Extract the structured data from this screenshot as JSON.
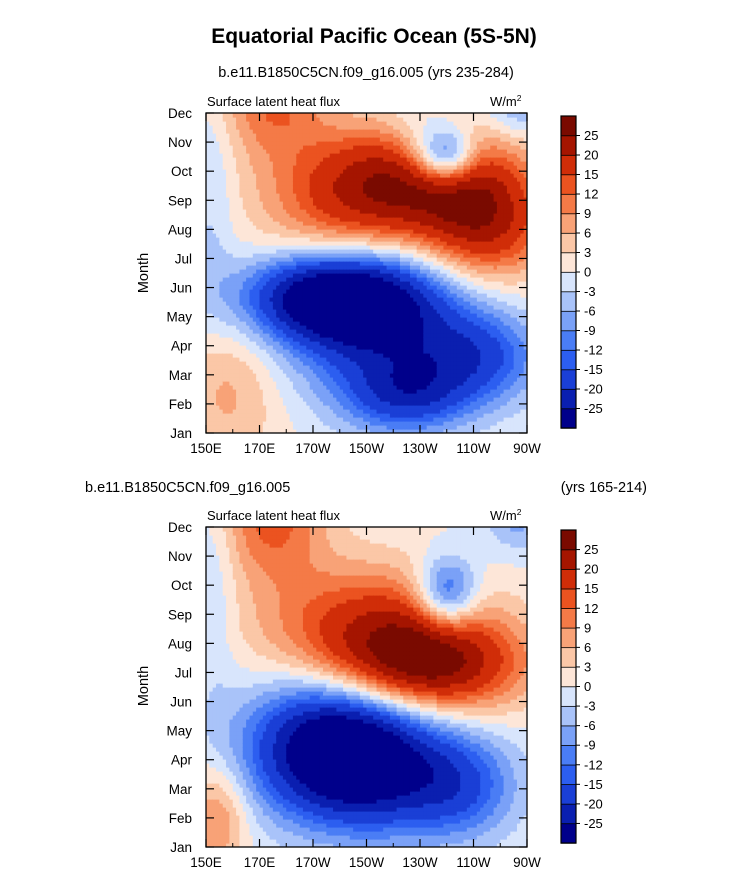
{
  "figure": {
    "title": "Equatorial Pacific Ocean (5S-5N)"
  },
  "chart_data": [
    {
      "type": "heatmap",
      "title": "b.e11.B1850C5CN.f09_g16.005 (yrs 235-284)",
      "left_string": "Surface latent heat flux",
      "units": "W/m",
      "units_superscript": "2",
      "ylabel": "Month",
      "x_ticks": [
        "150E",
        "170E",
        "170W",
        "150W",
        "130W",
        "110W",
        "90W"
      ],
      "x_range": [
        150,
        270
      ],
      "y_ticks": [
        "Jan",
        "Feb",
        "Mar",
        "Apr",
        "May",
        "Jun",
        "Jul",
        "Aug",
        "Sep",
        "Oct",
        "Nov",
        "Dec"
      ],
      "levels": [
        -25,
        -20,
        -15,
        -12,
        -9,
        -6,
        -3,
        0,
        3,
        6,
        9,
        12,
        15,
        20,
        25
      ],
      "colors": [
        "#00008b",
        "#0a1fb0",
        "#1a3fd6",
        "#2c5ef0",
        "#4a7df5",
        "#7aa1f7",
        "#a9c3f9",
        "#d8e5fc",
        "#fde6d8",
        "#fbc7a7",
        "#f8a277",
        "#f47a47",
        "#eb5320",
        "#d02d08",
        "#a51500",
        "#7a0a00"
      ],
      "features": [
        {
          "x": 233,
          "y": 8.7,
          "sx": 24,
          "sy": 1.3,
          "v": 25
        },
        {
          "x": 255,
          "y": 7.0,
          "sx": 16,
          "sy": 1.3,
          "v": 17
        },
        {
          "x": 200,
          "y": 8.0,
          "sx": 22,
          "sy": 1.6,
          "v": 12
        },
        {
          "x": 175,
          "y": 11.5,
          "sx": 14,
          "sy": 1.4,
          "v": 12
        },
        {
          "x": 240,
          "y": 9.5,
          "sx": 8,
          "sy": 0.7,
          "v": -22
        },
        {
          "x": 230,
          "y": 9.8,
          "sx": 10,
          "sy": 1.1,
          "v": -8
        },
        {
          "x": 266,
          "y": 11.5,
          "sx": 8,
          "sy": 0.9,
          "v": -8
        },
        {
          "x": 197,
          "y": 4.7,
          "sx": 22,
          "sy": 1.0,
          "v": -30
        },
        {
          "x": 215,
          "y": 3.6,
          "sx": 24,
          "sy": 1.6,
          "v": -20
        },
        {
          "x": 225,
          "y": 1.3,
          "sx": 16,
          "sy": 0.9,
          "v": -16
        },
        {
          "x": 252,
          "y": 2.6,
          "sx": 16,
          "sy": 1.1,
          "v": -14
        },
        {
          "x": 158,
          "y": 1.5,
          "sx": 14,
          "sy": 1.8,
          "v": 7
        },
        {
          "x": 152,
          "y": 8.0,
          "sx": 6,
          "sy": 3.0,
          "v": -4
        }
      ]
    },
    {
      "type": "heatmap",
      "title": "b.e11.B1850C5CN.f09_g16.005",
      "title_right": "(yrs 165-214)",
      "left_string": "Surface latent heat flux",
      "units": "W/m",
      "units_superscript": "2",
      "ylabel": "Month",
      "x_ticks": [
        "150E",
        "170E",
        "170W",
        "150W",
        "130W",
        "110W",
        "90W"
      ],
      "x_range": [
        150,
        270
      ],
      "y_ticks": [
        "Jan",
        "Feb",
        "Mar",
        "Apr",
        "May",
        "Jun",
        "Jul",
        "Aug",
        "Sep",
        "Oct",
        "Nov",
        "Dec"
      ],
      "levels": [
        -25,
        -20,
        -15,
        -12,
        -9,
        -6,
        -3,
        0,
        3,
        6,
        9,
        12,
        15,
        20,
        25
      ],
      "colors": [
        "#00008b",
        "#0a1fb0",
        "#1a3fd6",
        "#2c5ef0",
        "#4a7df5",
        "#7aa1f7",
        "#a9c3f9",
        "#d8e5fc",
        "#fde6d8",
        "#fbc7a7",
        "#f8a277",
        "#f47a47",
        "#eb5320",
        "#d02d08",
        "#a51500",
        "#7a0a00"
      ],
      "features": [
        {
          "x": 233,
          "y": 6.3,
          "sx": 24,
          "sy": 1.2,
          "v": 26
        },
        {
          "x": 210,
          "y": 7.7,
          "sx": 28,
          "sy": 1.5,
          "v": 15
        },
        {
          "x": 175,
          "y": 11.3,
          "sx": 14,
          "sy": 1.5,
          "v": 13
        },
        {
          "x": 240,
          "y": 8.7,
          "sx": 8,
          "sy": 0.9,
          "v": -18
        },
        {
          "x": 266,
          "y": 11.5,
          "sx": 8,
          "sy": 0.9,
          "v": -8
        },
        {
          "x": 198,
          "y": 3.5,
          "sx": 22,
          "sy": 1.6,
          "v": -30
        },
        {
          "x": 218,
          "y": 2.5,
          "sx": 24,
          "sy": 1.5,
          "v": -16
        },
        {
          "x": 246,
          "y": 2.0,
          "sx": 14,
          "sy": 1.2,
          "v": -10
        },
        {
          "x": 154,
          "y": 1.0,
          "sx": 8,
          "sy": 1.3,
          "v": 10
        },
        {
          "x": 153,
          "y": 9.0,
          "sx": 6,
          "sy": 3.0,
          "v": -4
        }
      ]
    }
  ]
}
